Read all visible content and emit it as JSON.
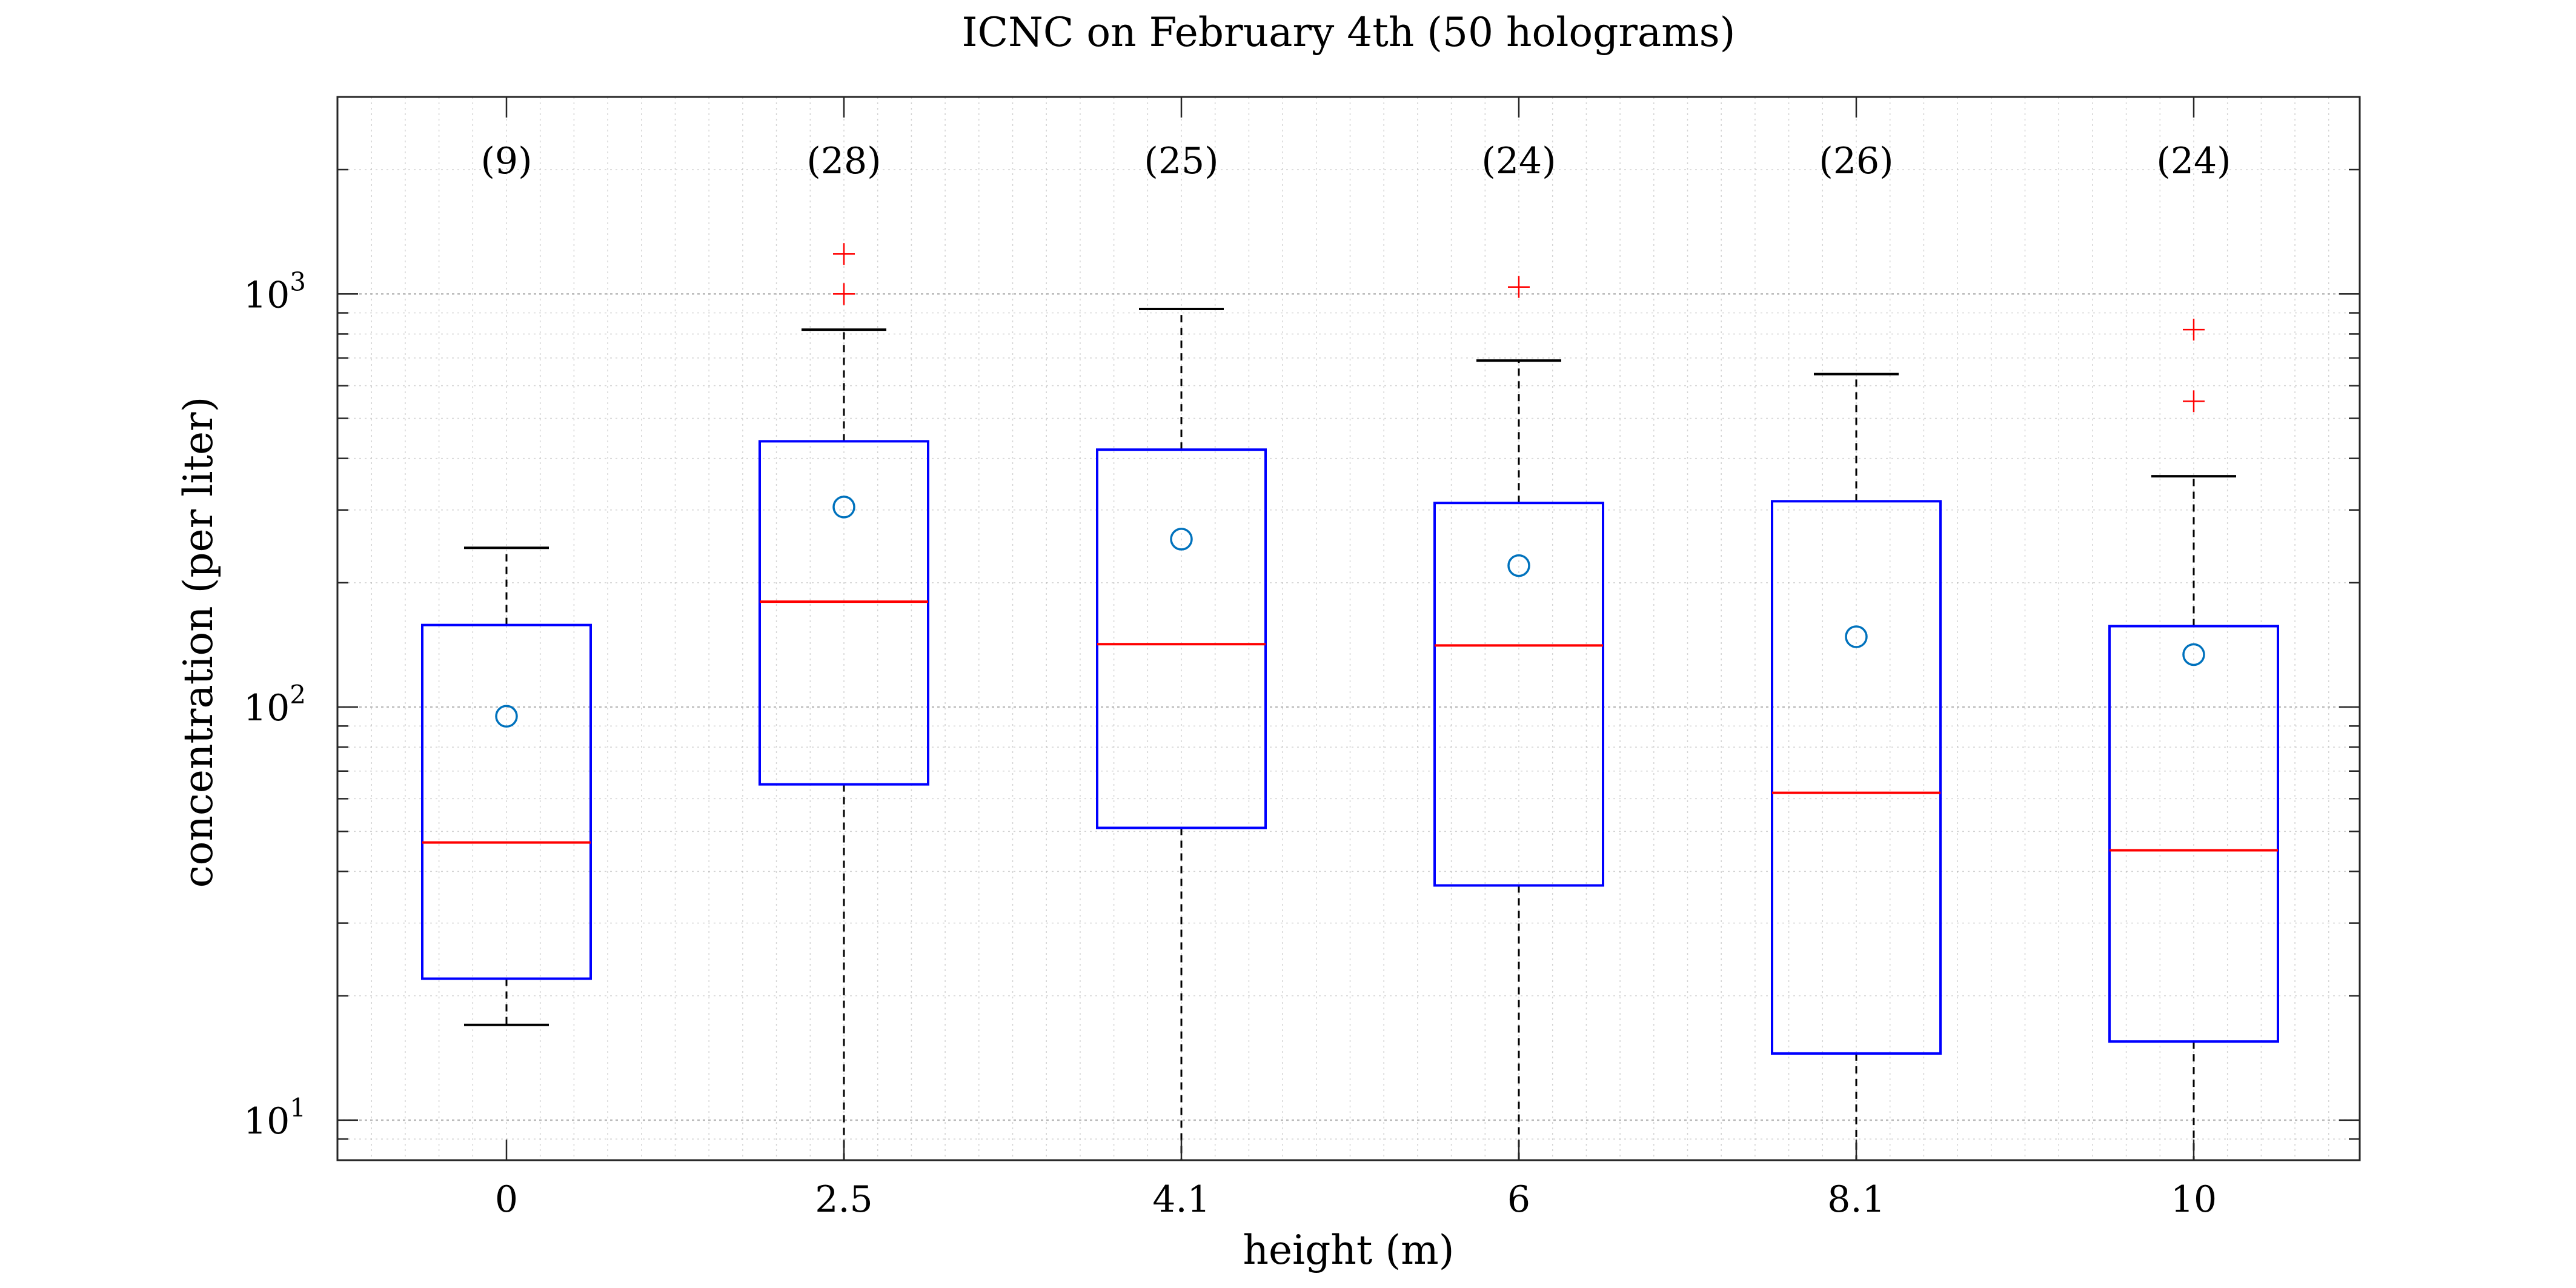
{
  "chart_data": {
    "type": "box",
    "title": "ICNC on February 4th (50 holograms)",
    "xlabel": "height (m)",
    "ylabel": "concentration (per liter)",
    "yscale": "log",
    "ylim": [
      8,
      3000
    ],
    "grid": true,
    "minor_grid": true,
    "categories": [
      "0",
      "2.5",
      "4.1",
      "6",
      "8.1",
      "10"
    ],
    "ytick_labels": [
      {
        "value": 10,
        "base": "10",
        "exp": "1"
      },
      {
        "value": 100,
        "base": "10",
        "exp": "2"
      },
      {
        "value": 1000,
        "base": "10",
        "exp": "3"
      }
    ],
    "boxes": [
      {
        "category": "0",
        "count_label": "(9)",
        "whisker_low": 17,
        "q1": 22,
        "median": 47,
        "q3": 158,
        "whisker_high": 243,
        "mean": 95,
        "outliers": []
      },
      {
        "category": "2.5",
        "count_label": "(28)",
        "whisker_low": 8,
        "q1": 65,
        "median": 180,
        "q3": 440,
        "whisker_high": 820,
        "mean": 305,
        "outliers": [
          1000,
          1250
        ]
      },
      {
        "category": "4.1",
        "count_label": "(25)",
        "whisker_low": 8,
        "q1": 51,
        "median": 142,
        "q3": 420,
        "whisker_high": 920,
        "mean": 255,
        "outliers": []
      },
      {
        "category": "6",
        "count_label": "(24)",
        "whisker_low": 8,
        "q1": 37,
        "median": 141,
        "q3": 312,
        "whisker_high": 690,
        "mean": 220,
        "outliers": [
          1040
        ]
      },
      {
        "category": "8.1",
        "count_label": "(26)",
        "whisker_low": 8,
        "q1": 14.5,
        "median": 62,
        "q3": 315,
        "whisker_high": 640,
        "mean": 148,
        "outliers": []
      },
      {
        "category": "10",
        "count_label": "(24)",
        "whisker_low": 8,
        "q1": 15.5,
        "median": 45,
        "q3": 157,
        "whisker_high": 362,
        "mean": 134,
        "outliers": [
          550,
          820
        ]
      }
    ],
    "colors": {
      "box": "#0000ff",
      "median": "#ff0000",
      "outlier": "#ff0000",
      "mean": "#0072bd",
      "whisker": "#000000",
      "grid": "#b0b0b0",
      "axes": "#262626"
    }
  }
}
